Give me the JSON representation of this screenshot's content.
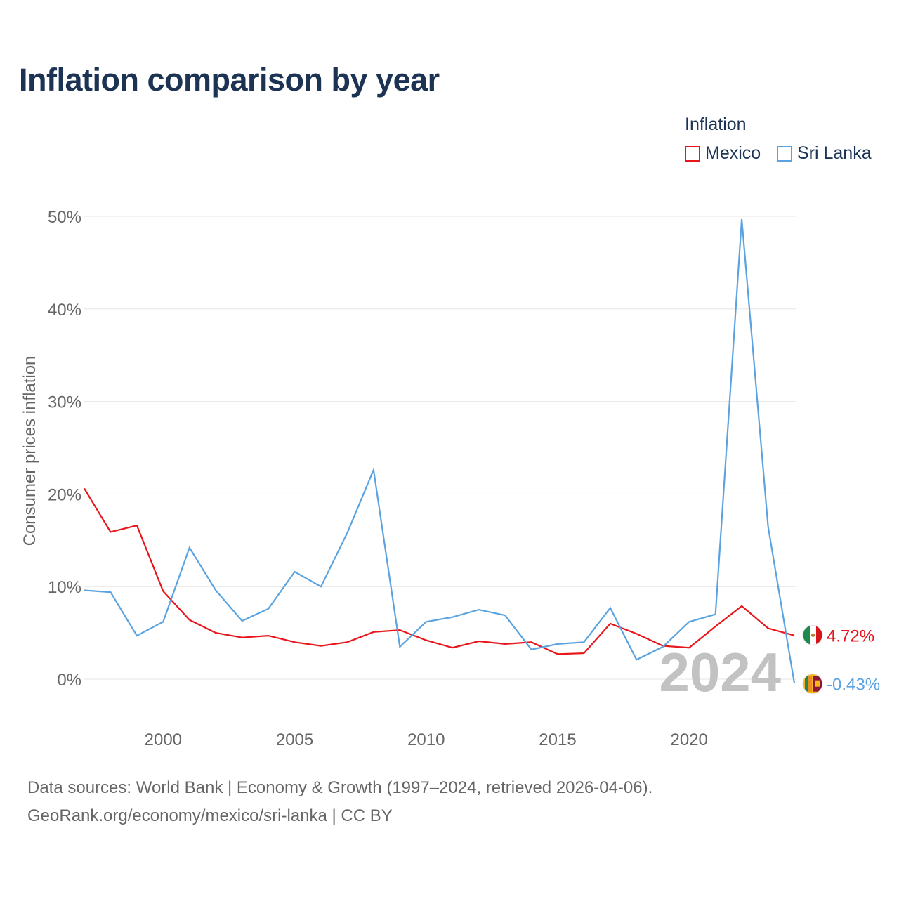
{
  "chart_data": {
    "type": "line",
    "title": "Inflation comparison by year",
    "legend_title": "Inflation",
    "ylabel": "Consumer prices inflation",
    "xlabel": "",
    "x": [
      1997,
      1998,
      1999,
      2000,
      2001,
      2002,
      2003,
      2004,
      2005,
      2006,
      2007,
      2008,
      2009,
      2010,
      2011,
      2012,
      2013,
      2014,
      2015,
      2016,
      2017,
      2018,
      2019,
      2020,
      2021,
      2022,
      2023,
      2024
    ],
    "xlim": [
      1997,
      2024
    ],
    "ylim": [
      0,
      50
    ],
    "x_ticks": [
      {
        "value": 2000,
        "label": "2000"
      },
      {
        "value": 2005,
        "label": "2005"
      },
      {
        "value": 2010,
        "label": "2010"
      },
      {
        "value": 2015,
        "label": "2015"
      },
      {
        "value": 2020,
        "label": "2020"
      }
    ],
    "y_ticks": [
      {
        "value": 0,
        "label": "0%"
      },
      {
        "value": 10,
        "label": "10%"
      },
      {
        "value": 20,
        "label": "20%"
      },
      {
        "value": 30,
        "label": "30%"
      },
      {
        "value": 40,
        "label": "40%"
      },
      {
        "value": 50,
        "label": "50%"
      }
    ],
    "grid": true,
    "legend_position": "top-right",
    "year_watermark": "2024",
    "series": [
      {
        "name": "Mexico",
        "color": "#e8161b",
        "flag": "mexico-flag-icon",
        "end_label": "4.72%",
        "values": [
          20.6,
          15.9,
          16.6,
          9.5,
          6.4,
          5.0,
          4.5,
          4.7,
          4.0,
          3.6,
          4.0,
          5.1,
          5.3,
          4.2,
          3.4,
          4.1,
          3.8,
          4.0,
          2.7,
          2.8,
          6.0,
          4.9,
          3.6,
          3.4,
          5.7,
          7.9,
          5.5,
          4.72
        ]
      },
      {
        "name": "Sri Lanka",
        "color": "#5ba3e0",
        "flag": "sri-lanka-flag-icon",
        "end_label": "-0.43%",
        "values": [
          9.6,
          9.4,
          4.7,
          6.2,
          14.2,
          9.6,
          6.3,
          7.6,
          11.6,
          10.0,
          15.8,
          22.6,
          3.5,
          6.2,
          6.7,
          7.5,
          6.9,
          3.2,
          3.8,
          4.0,
          7.7,
          2.1,
          3.5,
          6.2,
          7.0,
          49.7,
          16.5,
          -0.43
        ]
      }
    ]
  },
  "sources": {
    "line1": "Data sources: World Bank | Economy & Growth (1997–2024, retrieved 2026-04-06).",
    "line2": "GeoRank.org/economy/mexico/sri-lanka | CC BY"
  }
}
